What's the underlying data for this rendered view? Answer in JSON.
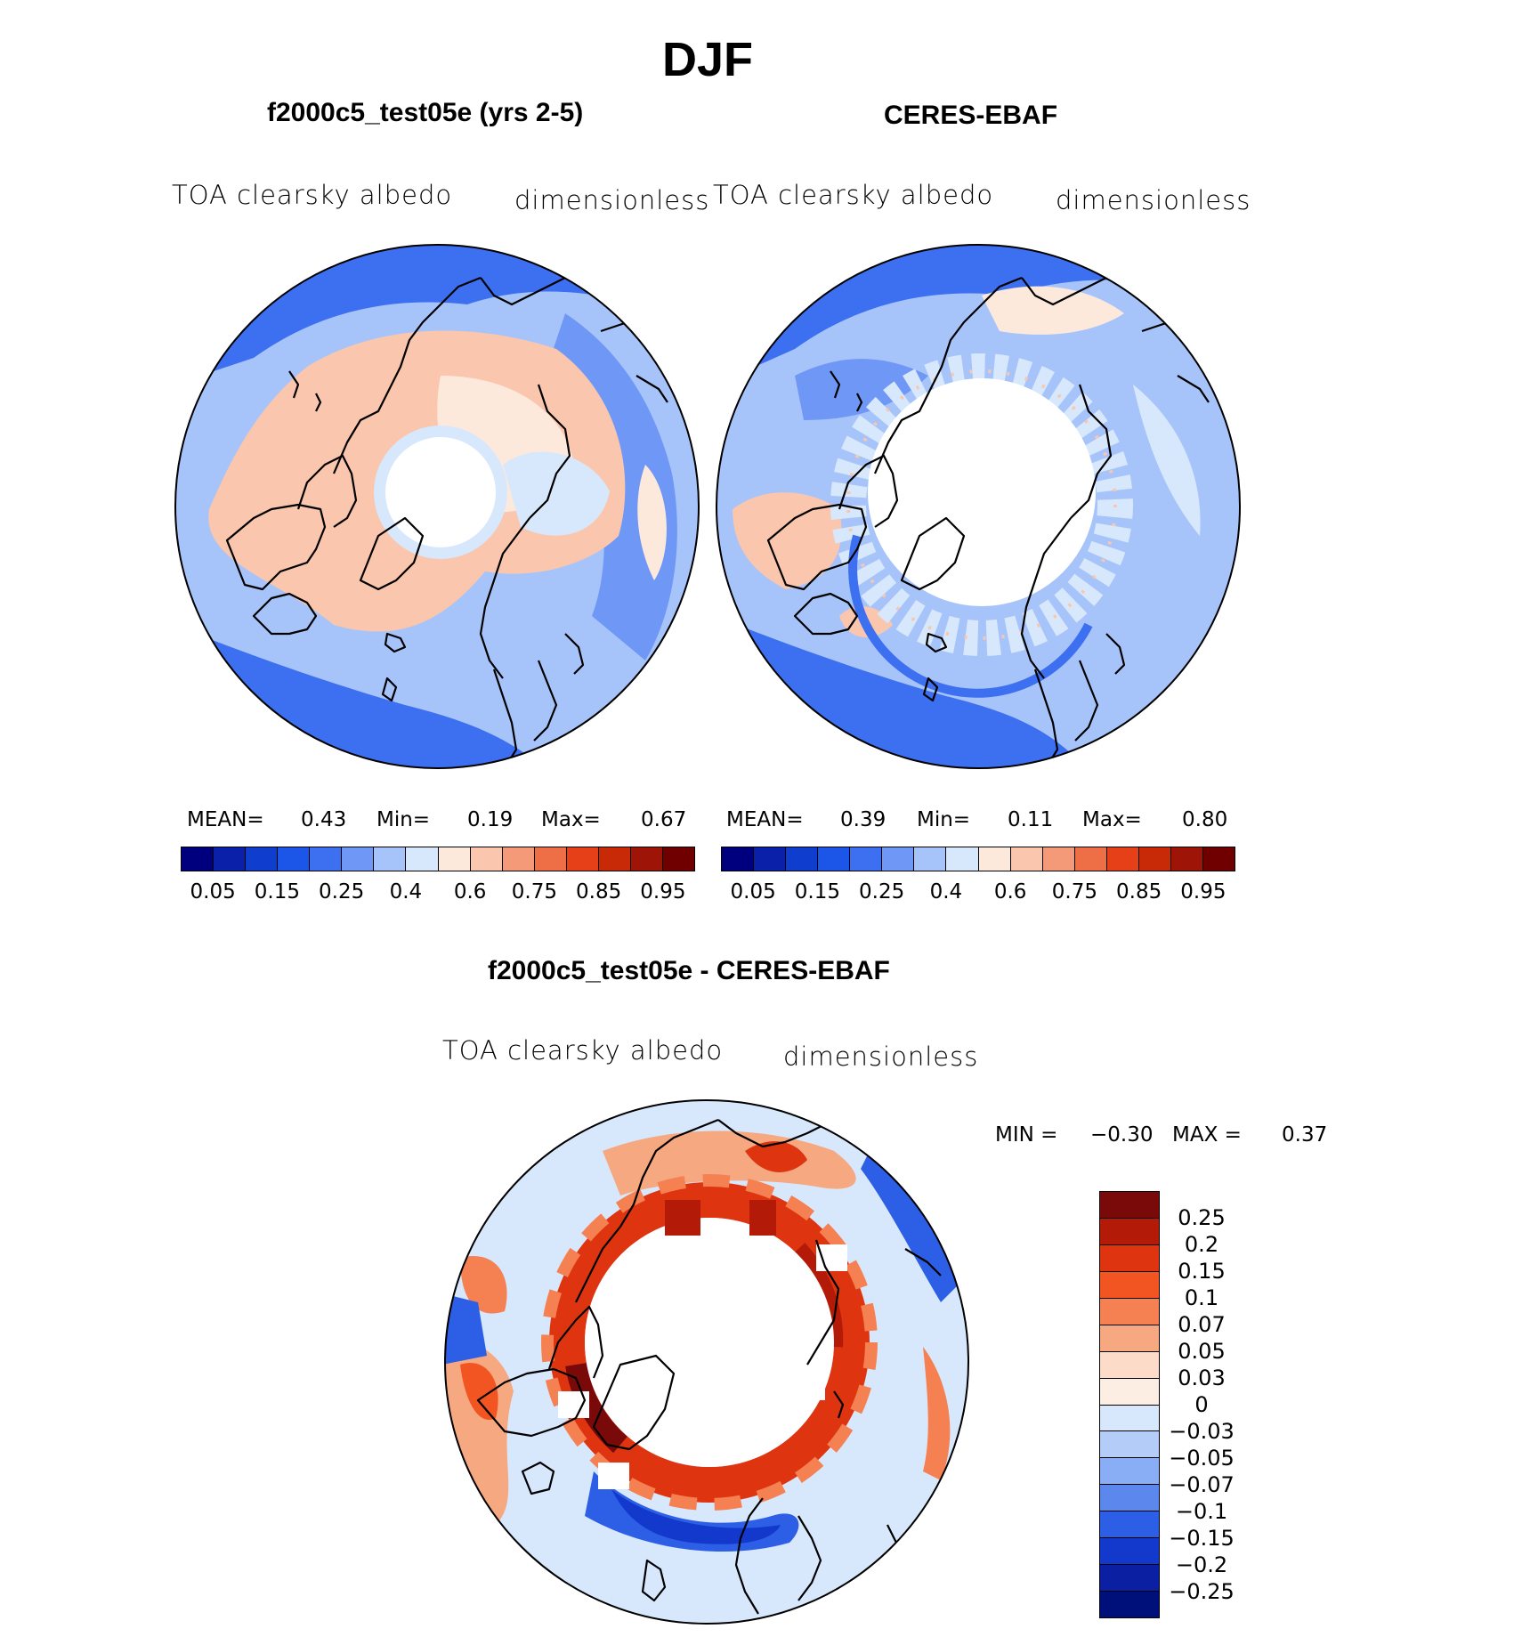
{
  "title": "DJF",
  "panels": [
    {
      "title": "f2000c5_test05e (yrs 2-5)",
      "left_label": "TOA clearsky albedo",
      "right_label": "dimensionless",
      "stats": {
        "mean_label": "MEAN=",
        "mean": "0.43",
        "min_label": "Min=",
        "min": "0.19",
        "max_label": "Max=",
        "max": "0.67"
      }
    },
    {
      "title": "CERES-EBAF",
      "left_label": "TOA clearsky albedo",
      "right_label": "dimensionless",
      "stats": {
        "mean_label": "MEAN=",
        "mean": "0.39",
        "min_label": "Min=",
        "min": "0.11",
        "max_label": "Max=",
        "max": "0.80"
      }
    },
    {
      "title": "f2000c5_test05e - CERES-EBAF",
      "left_label": "TOA clearsky albedo",
      "right_label": "dimensionless",
      "stats": {
        "min_label": "MIN =",
        "min": "−0.30",
        "max_label": "MAX =",
        "max": "0.37"
      }
    }
  ],
  "colorbar_top": {
    "colors": [
      "#00007f",
      "#0a20a8",
      "#0f3ecf",
      "#1c56e8",
      "#3d70f0",
      "#6f98f6",
      "#a7c4fa",
      "#d8e8fc",
      "#fde9dc",
      "#fac6ad",
      "#f49a78",
      "#ee6e45",
      "#e64018",
      "#c82a08",
      "#9e1406",
      "#700000"
    ],
    "ticks": [
      "0.05",
      "0.15",
      "0.25",
      "0.4",
      "0.6",
      "0.75",
      "0.85",
      "0.95"
    ]
  },
  "colorbar_diff": {
    "colors": [
      "#7a0a0a",
      "#b31a08",
      "#de3510",
      "#f25522",
      "#f58052",
      "#f6a880",
      "#fcdcc8",
      "#fdeee4",
      "#d8e8fc",
      "#b4cdf8",
      "#8aaef5",
      "#5c88ee",
      "#2d5fe6",
      "#1238cc",
      "#0a1fa2",
      "#00107a"
    ],
    "ticks": [
      "0.25",
      "0.2",
      "0.15",
      "0.1",
      "0.07",
      "0.05",
      "0.03",
      "0",
      "−0.03",
      "−0.05",
      "−0.07",
      "−0.1",
      "−0.15",
      "−0.2",
      "−0.25"
    ]
  }
}
